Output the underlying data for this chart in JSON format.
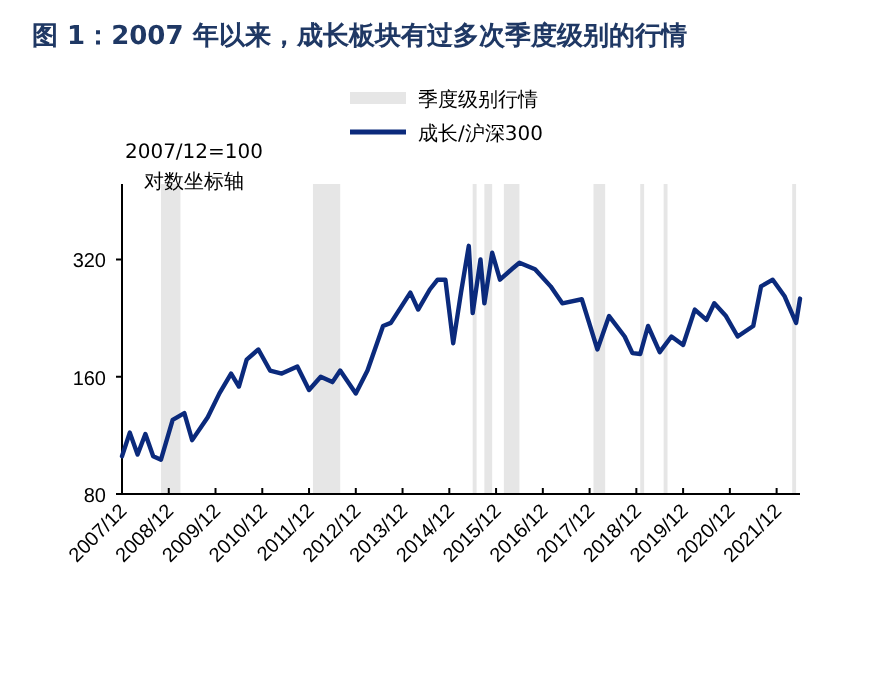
{
  "chart_data": {
    "type": "line",
    "title": "图 1：2007 年以来，成长板块有过多次季度级别的行情",
    "annotations": [
      "2007/12=100",
      "对数坐标轴"
    ],
    "log": "y",
    "legend": "top",
    "xlim": [
      "2007-12",
      "2022-06"
    ],
    "xticks": [
      {
        "value": "2007-12",
        "label": "2007/12"
      },
      {
        "value": "2008-12",
        "label": "2008/12"
      },
      {
        "value": "2009-12",
        "label": "2009/12"
      },
      {
        "value": "2010-12",
        "label": "2010/12"
      },
      {
        "value": "2011-12",
        "label": "2011/12"
      },
      {
        "value": "2012-12",
        "label": "2012/12"
      },
      {
        "value": "2013-12",
        "label": "2013/12"
      },
      {
        "value": "2014-12",
        "label": "2014/12"
      },
      {
        "value": "2015-12",
        "label": "2015/12"
      },
      {
        "value": "2016-12",
        "label": "2016/12"
      },
      {
        "value": "2017-12",
        "label": "2017/12"
      },
      {
        "value": "2018-12",
        "label": "2018/12"
      },
      {
        "value": "2019-12",
        "label": "2019/12"
      },
      {
        "value": "2020-12",
        "label": "2020/12"
      },
      {
        "value": "2021-12",
        "label": "2021/12"
      }
    ],
    "ylim": [
      80,
      500
    ],
    "yticks": [
      80,
      160,
      320
    ],
    "bands": [
      {
        "axis": "x",
        "from": "2008-10",
        "to": "2009-03",
        "label": "季度级别行情",
        "color": "#e6e6e6"
      },
      {
        "axis": "x",
        "from": "2012-01",
        "to": "2012-08",
        "color": "#e6e6e6"
      },
      {
        "axis": "x",
        "from": "2015-06",
        "to": "2015-07",
        "color": "#e6e6e6"
      },
      {
        "axis": "x",
        "from": "2015-09",
        "to": "2015-11",
        "color": "#e6e6e6"
      },
      {
        "axis": "x",
        "from": "2016-02",
        "to": "2016-06",
        "color": "#e6e6e6"
      },
      {
        "axis": "x",
        "from": "2018-01",
        "to": "2018-04",
        "color": "#e6e6e6"
      },
      {
        "axis": "x",
        "from": "2019-01",
        "to": "2019-02",
        "color": "#e6e6e6"
      },
      {
        "axis": "x",
        "from": "2019-07",
        "to": "2019-08",
        "color": "#e6e6e6"
      },
      {
        "axis": "x",
        "from": "2022-04",
        "to": "2022-05",
        "color": "#e6e6e6"
      }
    ],
    "series": [
      {
        "name": "成长/沪深300",
        "color": "#0b2a7c",
        "x": [
          "2007-12",
          "2008-02",
          "2008-04",
          "2008-06",
          "2008-08",
          "2008-10",
          "2009-01",
          "2009-04",
          "2009-06",
          "2009-10",
          "2010-01",
          "2010-04",
          "2010-06",
          "2010-08",
          "2010-11",
          "2011-02",
          "2011-05",
          "2011-09",
          "2011-12",
          "2012-03",
          "2012-06",
          "2012-08",
          "2012-12",
          "2013-03",
          "2013-07",
          "2013-09",
          "2014-02",
          "2014-04",
          "2014-07",
          "2014-09",
          "2014-11",
          "2015-01",
          "2015-03",
          "2015-05",
          "2015-06",
          "2015-08",
          "2015-09",
          "2015-11",
          "2016-01",
          "2016-04",
          "2016-06",
          "2016-10",
          "2017-02",
          "2017-05",
          "2017-10",
          "2018-02",
          "2018-05",
          "2018-09",
          "2018-11",
          "2019-01",
          "2019-03",
          "2019-06",
          "2019-09",
          "2019-12",
          "2020-03",
          "2020-06",
          "2020-08",
          "2020-11",
          "2021-02",
          "2021-06",
          "2021-08",
          "2021-11",
          "2022-02",
          "2022-05",
          "2022-06"
        ],
        "values": [
          100,
          115,
          101,
          114,
          100,
          98,
          124,
          129,
          110,
          126,
          145,
          163,
          151,
          177,
          188,
          166,
          163,
          170,
          148,
          160,
          155,
          166,
          145,
          166,
          216,
          220,
          263,
          238,
          268,
          284,
          284,
          195,
          263,
          347,
          233,
          320,
          247,
          333,
          284,
          302,
          314,
          302,
          273,
          247,
          253,
          188,
          229,
          203,
          184,
          183,
          216,
          185,
          203,
          193,
          238,
          224,
          247,
          229,
          203,
          216,
          273,
          284,
          258,
          220,
          254
        ]
      }
    ]
  }
}
